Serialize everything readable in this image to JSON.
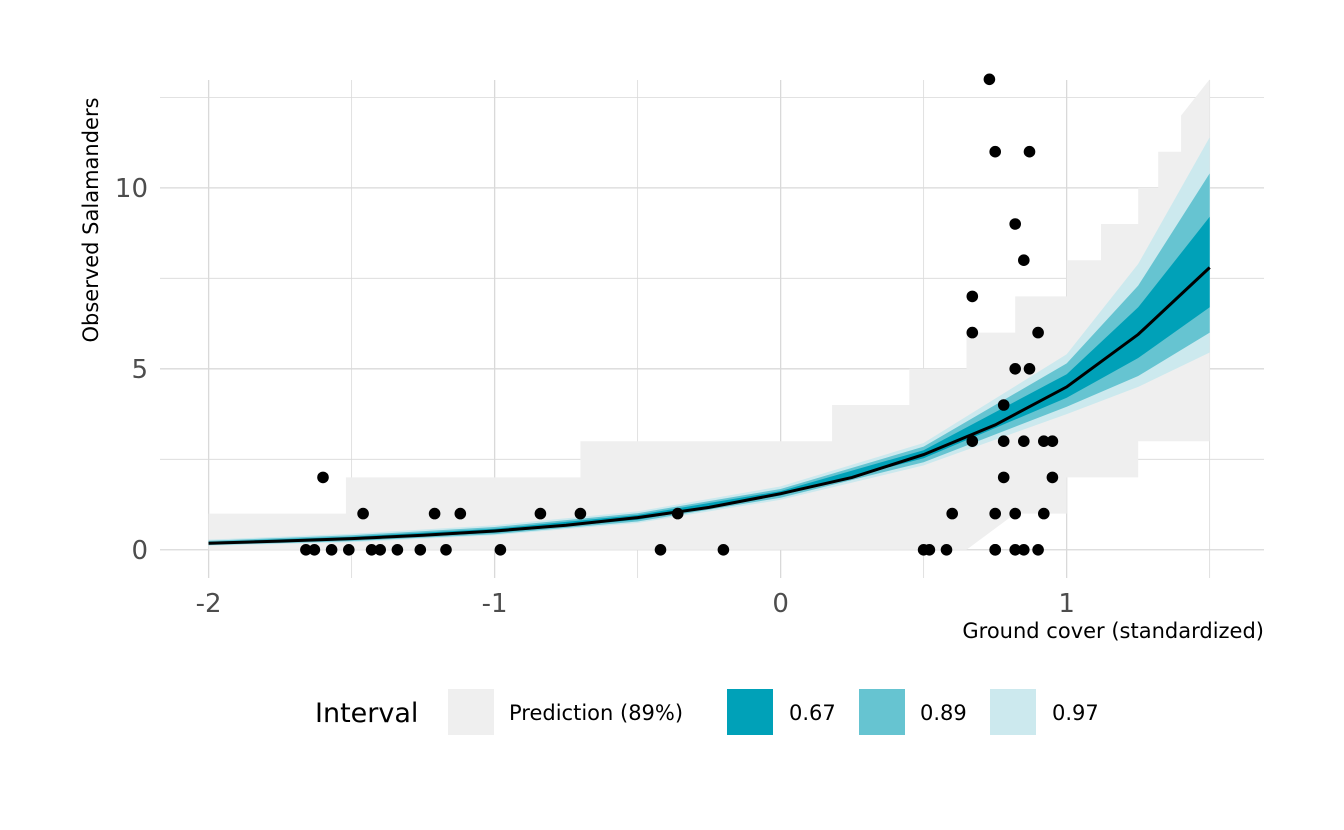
{
  "chart_data": {
    "type": "scatter",
    "xlabel": "Ground cover (standardized)",
    "ylabel": "Observed Salamanders",
    "xlim": [
      -2.17,
      1.69
    ],
    "ylim": [
      -0.78,
      12.98
    ],
    "x_ticks": [
      -2,
      -1,
      0,
      1
    ],
    "x_tick_labels": [
      "-2",
      "-1",
      "0",
      "1"
    ],
    "y_ticks": [
      0,
      5,
      10
    ],
    "y_tick_labels": [
      "0",
      "5",
      "10"
    ],
    "x_minor_ticks": [
      -1.5,
      -0.5,
      0.5,
      1.5
    ],
    "y_minor_ticks": [
      2.5,
      7.5,
      12.5
    ],
    "grid": true,
    "legend": {
      "title": "Interval",
      "position": "bottom",
      "entries": [
        {
          "label": "Prediction (89%)",
          "color": "#efefef"
        },
        {
          "label": "0.67",
          "color": "#00a1b8"
        },
        {
          "label": "0.89",
          "color": "#66c4d1"
        },
        {
          "label": "0.97",
          "color": "#cce9ee"
        }
      ]
    },
    "colors": {
      "prediction": "#efefef",
      "band_67": "#00a1b8",
      "band_89": "#66c4d1",
      "band_97": "#cce9ee",
      "line": "#000000",
      "points": "#000000",
      "grid": "#d9d9d9"
    },
    "fit_curve": {
      "x": [
        -2,
        -1.75,
        -1.5,
        -1.25,
        -1,
        -0.75,
        -0.5,
        -0.25,
        0,
        0.25,
        0.5,
        0.75,
        1,
        1.25,
        1.5
      ],
      "y": [
        0.18,
        0.24,
        0.31,
        0.4,
        0.52,
        0.68,
        0.89,
        1.17,
        1.55,
        2.0,
        2.63,
        3.45,
        4.5,
        5.95,
        7.8
      ]
    },
    "interval_67": {
      "x": [
        -2,
        -1.5,
        -1,
        -0.5,
        0,
        0.5,
        1,
        1.25,
        1.5
      ],
      "lower": [
        0.15,
        0.27,
        0.47,
        0.83,
        1.5,
        2.53,
        4.2,
        5.3,
        6.7
      ],
      "upper": [
        0.22,
        0.36,
        0.58,
        0.96,
        1.62,
        2.75,
        4.85,
        6.7,
        9.2
      ]
    },
    "interval_89": {
      "x": [
        -2,
        -1.5,
        -1,
        -0.5,
        0,
        0.5,
        1,
        1.25,
        1.5
      ],
      "lower": [
        0.13,
        0.24,
        0.43,
        0.78,
        1.44,
        2.42,
        3.95,
        4.8,
        6.0
      ],
      "upper": [
        0.25,
        0.4,
        0.63,
        1.01,
        1.68,
        2.85,
        5.15,
        7.3,
        10.4
      ]
    },
    "interval_97": {
      "x": [
        -2,
        -1.5,
        -1,
        -0.5,
        0,
        0.5,
        1,
        1.25,
        1.5
      ],
      "lower": [
        0.11,
        0.21,
        0.4,
        0.74,
        1.38,
        2.33,
        3.75,
        4.5,
        5.45
      ],
      "upper": [
        0.28,
        0.44,
        0.68,
        1.06,
        1.75,
        2.95,
        5.4,
        7.9,
        11.4
      ]
    },
    "prediction_interval": {
      "x": [
        -2,
        -1.52,
        -1.52,
        -0.7,
        -0.7,
        0.18,
        0.18,
        0.45,
        0.45,
        0.65,
        0.65,
        0.82,
        0.82,
        1.0,
        1.0,
        1.12,
        1.12,
        1.25,
        1.25,
        1.32,
        1.32,
        1.4,
        1.4,
        1.5
      ],
      "lower": [
        0,
        0,
        0,
        0,
        0,
        0,
        0,
        0,
        0,
        0,
        0,
        1,
        1,
        1,
        2,
        2,
        2,
        2,
        3,
        3,
        3,
        3,
        3,
        3
      ],
      "upper": [
        1,
        1,
        2,
        2,
        3,
        3,
        4,
        4,
        5,
        5,
        6,
        6,
        7,
        7,
        8,
        8,
        9,
        9,
        10,
        10,
        11,
        11,
        12,
        13
      ]
    },
    "observed": {
      "x": [
        -1.66,
        -1.63,
        -1.57,
        -1.51,
        -1.43,
        -1.4,
        -1.34,
        -1.26,
        -1.17,
        -0.98,
        -0.42,
        -0.2,
        0.5,
        0.52,
        0.58,
        0.75,
        0.75,
        0.75,
        0.82,
        0.85,
        0.9,
        0.6,
        0.82,
        0.92,
        0.95,
        0.78,
        0.92,
        0.95,
        0.78,
        0.85,
        0.67,
        0.78,
        0.82,
        0.87,
        0.67,
        0.9,
        0.67,
        0.85,
        0.82,
        0.75,
        0.87,
        0.73,
        -1.6,
        -1.46,
        -1.21,
        -1.12,
        -0.84,
        -0.7,
        -0.36
      ],
      "y": [
        0,
        0,
        0,
        0,
        0,
        0,
        0,
        0,
        0,
        0,
        0,
        0,
        0,
        0,
        0,
        0,
        0,
        1,
        0,
        0,
        0,
        1,
        1,
        1,
        2,
        2,
        3,
        3,
        3,
        3,
        3,
        4,
        5,
        5,
        6,
        6,
        7,
        8,
        9,
        11,
        11,
        13,
        2,
        1,
        1,
        1,
        1,
        1,
        1
      ]
    }
  }
}
